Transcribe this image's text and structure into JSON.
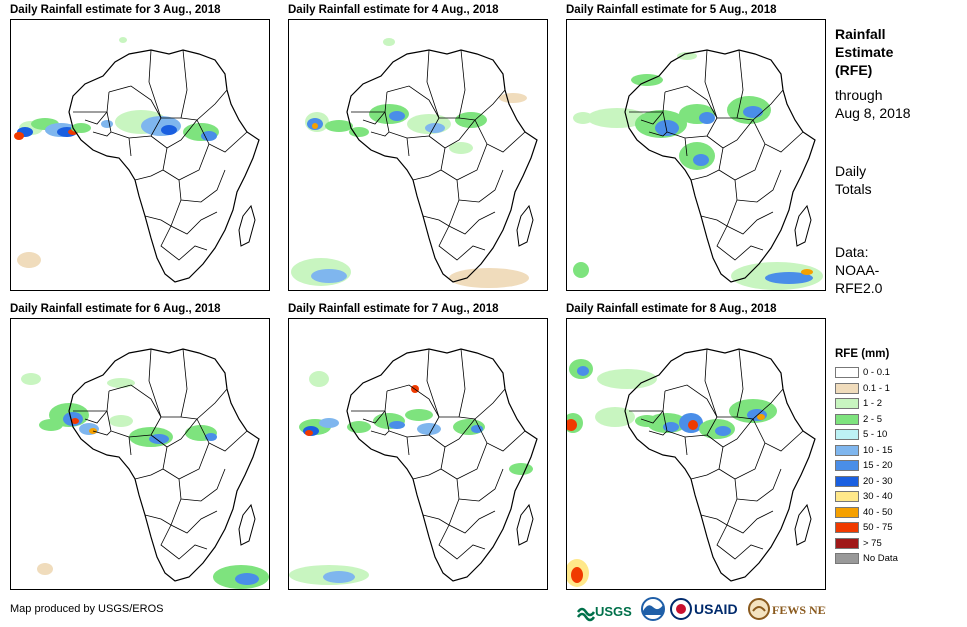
{
  "panels": [
    {
      "title": "Daily Rainfall estimate for 3 Aug., 2018"
    },
    {
      "title": "Daily Rainfall estimate for 4 Aug., 2018"
    },
    {
      "title": "Daily Rainfall estimate for 5 Aug., 2018"
    },
    {
      "title": "Daily Rainfall estimate for 6 Aug., 2018"
    },
    {
      "title": "Daily Rainfall estimate for 7 Aug., 2018"
    },
    {
      "title": "Daily Rainfall estimate for 8 Aug., 2018"
    }
  ],
  "sidebar": {
    "title": [
      "Rainfall",
      "Estimate",
      "(RFE)"
    ],
    "through": [
      "through",
      "Aug 8, 2018"
    ],
    "totals": [
      "Daily",
      "Totals"
    ],
    "data": [
      "Data:",
      "NOAA-",
      "RFE2.0"
    ]
  },
  "legend": {
    "title": "RFE (mm)",
    "items": [
      {
        "label": "0 - 0.1",
        "color": "#ffffff"
      },
      {
        "label": "0.1 - 1",
        "color": "#f0dcbc"
      },
      {
        "label": "1 - 2",
        "color": "#c8f5c0"
      },
      {
        "label": "2 - 5",
        "color": "#7ee37e"
      },
      {
        "label": "5 - 10",
        "color": "#bdf2f5"
      },
      {
        "label": "10 - 15",
        "color": "#7fb6ee"
      },
      {
        "label": "15 - 20",
        "color": "#4a8ee8"
      },
      {
        "label": "20 - 30",
        "color": "#1a5fe0"
      },
      {
        "label": "30 - 40",
        "color": "#ffe88a"
      },
      {
        "label": "40 - 50",
        "color": "#f5a000"
      },
      {
        "label": "50 - 75",
        "color": "#f03a00"
      },
      {
        "label": "> 75",
        "color": "#a01818"
      },
      {
        "label": "No Data",
        "color": "#999999"
      }
    ]
  },
  "credit": "Map produced by USGS/EROS",
  "logos": [
    {
      "name": "usgs-logo",
      "text": "USGS",
      "color": "#00704a"
    },
    {
      "name": "noaa-logo",
      "text": "NOAA",
      "color": "#1f5fa8"
    },
    {
      "name": "usaid-logo",
      "text": "USAID",
      "color": "#002a6c"
    },
    {
      "name": "fewsnet-logo",
      "text": "FEWS NET",
      "color": "#8a5a1e"
    }
  ]
}
